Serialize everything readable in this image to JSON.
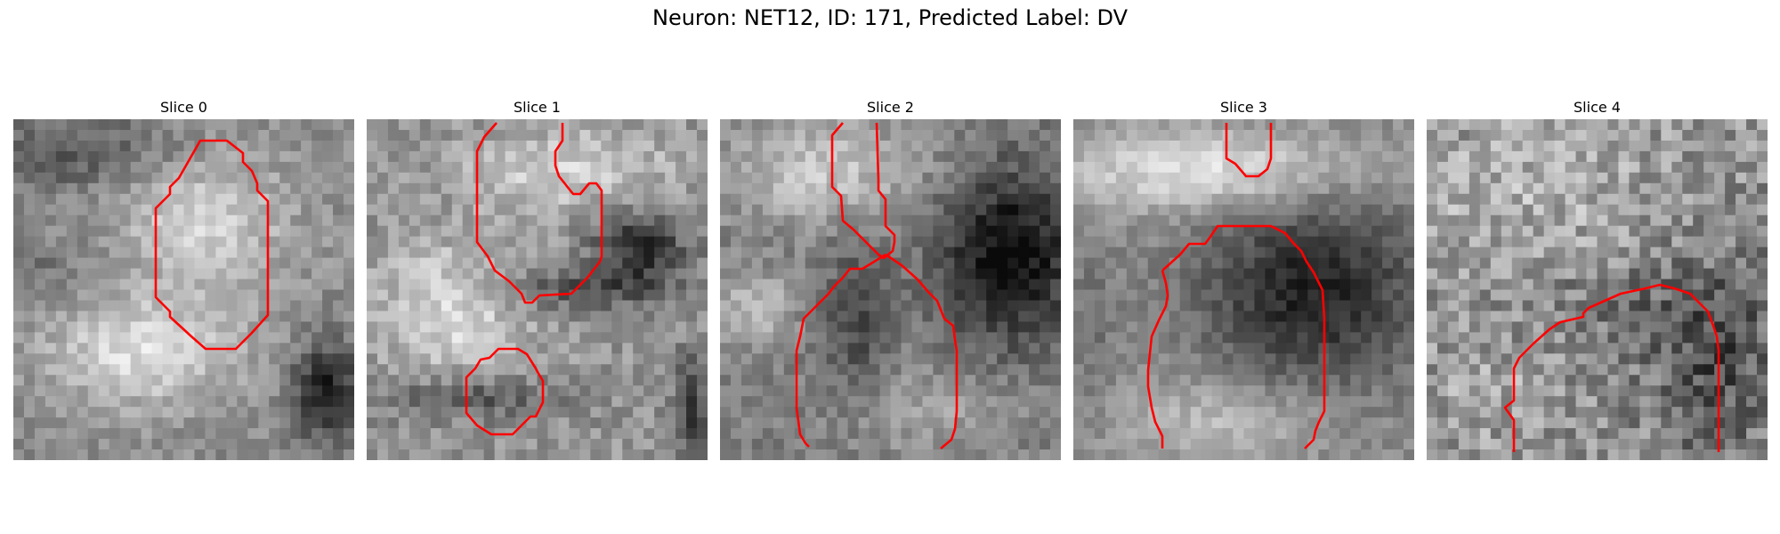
{
  "figure": {
    "title": "Neuron: NET12, ID: 171, Predicted Label: DV"
  },
  "panels": [
    {
      "title": "Slice 0"
    },
    {
      "title": "Slice 1"
    },
    {
      "title": "Slice 2"
    },
    {
      "title": "Slice 3"
    },
    {
      "title": "Slice 4"
    }
  ],
  "colors": {
    "contour": "#ff0000",
    "background": "#ffffff"
  }
}
